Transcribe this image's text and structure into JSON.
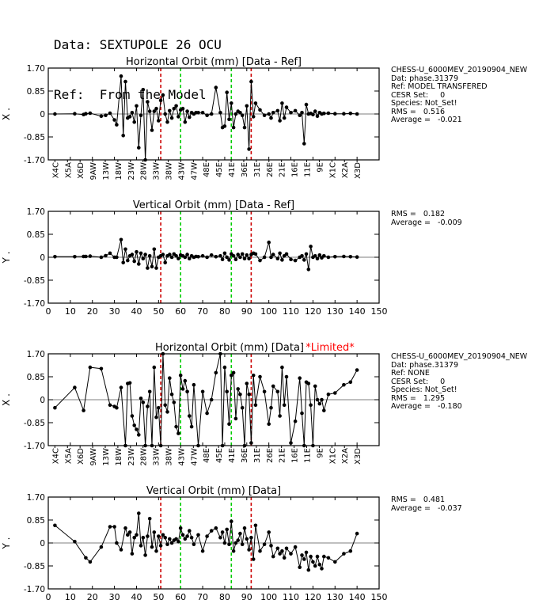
{
  "header": {
    "data_line": "Data: SEXTUPOLE 26 OCU",
    "ref_line": "Ref:  From the Model"
  },
  "colors": {
    "red_marker": "#cc0000",
    "green_marker": "#00cc00",
    "limited_text": "#ff0000"
  },
  "chart_data": [
    {
      "type": "line",
      "title": "Horizontal Orbit (mm) [Data - Ref]",
      "ylabel": "X",
      "ylim": [
        -1.7,
        1.7
      ],
      "xlim": [
        0,
        150
      ],
      "yticks": [
        "1.70",
        "0.85",
        "0",
        "-0.85",
        "-1.70"
      ],
      "marker_lines": {
        "red": [
          51,
          92
        ],
        "green": [
          60,
          83
        ]
      },
      "x_tick_labels": [
        "X4C",
        "X5A",
        "X6D",
        "9AW",
        "13W",
        "18W",
        "23W",
        "28W",
        "33W",
        "38W",
        "43W",
        "47W",
        "48E",
        "45E",
        "41E",
        "36E",
        "31E",
        "26E",
        "21E",
        "16E",
        "11E",
        "9E",
        "X1C",
        "X2A",
        "X3D"
      ],
      "info": [
        "CHESS-U_6000MEV_20190904_NEW",
        "Dat: phase.31379",
        "Ref: MODEL TRANSFERED",
        "CESR Set:     0",
        "Species: Not_Set!",
        "RMS =   0.516",
        "Average =   -0.021"
      ],
      "x": [
        3,
        12,
        16,
        17,
        19,
        24,
        26,
        28,
        30,
        31,
        33,
        34,
        35,
        36,
        37,
        38,
        39,
        40,
        41,
        42,
        43,
        44,
        45,
        46,
        47,
        48,
        49,
        50,
        51,
        52,
        53,
        54,
        55,
        56,
        57,
        58,
        59,
        60,
        61,
        62,
        63,
        64,
        65,
        66,
        67,
        68,
        70,
        72,
        74,
        76,
        78,
        79,
        80,
        81,
        82,
        83,
        84,
        85,
        86,
        87,
        88,
        89,
        90,
        91,
        92,
        93,
        94,
        96,
        98,
        100,
        101,
        102,
        104,
        105,
        106,
        107,
        108,
        110,
        112,
        114,
        115,
        116,
        117,
        118,
        119,
        120,
        121,
        122,
        123,
        124,
        125,
        127,
        130,
        134,
        137,
        140
      ],
      "y": [
        0.0,
        0.01,
        -0.02,
        0.01,
        0.03,
        -0.08,
        -0.05,
        0.03,
        -0.22,
        -0.4,
        1.4,
        -0.8,
        1.2,
        -0.15,
        -0.1,
        0.05,
        -0.3,
        0.3,
        -1.25,
        -0.05,
        0.9,
        -1.7,
        0.45,
        0.1,
        -0.6,
        0.1,
        0.2,
        -0.25,
        0.5,
        0.7,
        0.0,
        -0.3,
        0.12,
        -0.15,
        0.2,
        0.3,
        -0.1,
        0.15,
        0.2,
        -0.3,
        0.1,
        -0.12,
        0.05,
        0.0,
        0.05,
        0.05,
        0.05,
        -0.05,
        0.0,
        0.98,
        0.05,
        -0.5,
        -0.45,
        0.8,
        -0.2,
        0.4,
        -0.5,
        0.0,
        0.1,
        0.05,
        -0.05,
        -0.5,
        0.3,
        -1.3,
        1.2,
        -0.1,
        0.4,
        0.15,
        -0.05,
        0.0,
        -0.15,
        0.05,
        0.12,
        -0.25,
        0.4,
        -0.15,
        0.25,
        0.05,
        0.12,
        -0.05,
        0.05,
        -1.1,
        0.35,
        0.0,
        0.02,
        -0.02,
        0.1,
        -0.08,
        0.05,
        0.0,
        0.02,
        0.03,
        0.01,
        0.01,
        0.02,
        0.0
      ]
    },
    {
      "type": "line",
      "title": "Vertical Orbit (mm) [Data - Ref]",
      "ylabel": "Y",
      "ylim": [
        -1.7,
        1.7
      ],
      "xlim": [
        0,
        150
      ],
      "yticks": [
        "1.70",
        "0.85",
        "0",
        "-0.85",
        "-1.70"
      ],
      "xticks": [
        "0",
        "10",
        "20",
        "30",
        "40",
        "50",
        "60",
        "70",
        "80",
        "90",
        "100",
        "110",
        "120",
        "130",
        "140",
        "150"
      ],
      "marker_lines": {
        "red": [
          51,
          92
        ],
        "green": [
          60,
          83
        ]
      },
      "info": [
        "RMS =   0.182",
        "Average =   -0.009"
      ],
      "x": [
        3,
        12,
        16,
        17,
        19,
        24,
        26,
        28,
        30,
        31,
        33,
        34,
        35,
        36,
        37,
        38,
        39,
        40,
        41,
        42,
        43,
        44,
        45,
        46,
        47,
        48,
        49,
        50,
        51,
        52,
        53,
        54,
        55,
        56,
        57,
        58,
        59,
        60,
        61,
        62,
        63,
        64,
        65,
        66,
        67,
        68,
        70,
        72,
        74,
        76,
        78,
        79,
        80,
        81,
        82,
        83,
        84,
        85,
        86,
        87,
        88,
        89,
        90,
        91,
        92,
        93,
        94,
        96,
        98,
        100,
        101,
        102,
        104,
        105,
        106,
        107,
        108,
        110,
        112,
        114,
        115,
        116,
        117,
        118,
        119,
        120,
        121,
        122,
        123,
        124,
        125,
        127,
        130,
        134,
        137,
        140
      ],
      "y": [
        0.02,
        0.02,
        0.03,
        0.03,
        0.04,
        0.0,
        0.06,
        0.15,
        0.0,
        0.0,
        0.65,
        -0.2,
        0.3,
        -0.12,
        0.05,
        0.1,
        -0.15,
        0.2,
        -0.25,
        0.15,
        -0.05,
        0.1,
        -0.4,
        0.05,
        -0.35,
        0.3,
        -0.4,
        0.0,
        0.05,
        0.1,
        -0.2,
        0.05,
        0.1,
        0.0,
        0.12,
        0.05,
        -0.05,
        0.08,
        0.05,
        0.0,
        0.1,
        -0.05,
        0.05,
        0.0,
        0.03,
        0.02,
        0.05,
        0.0,
        0.08,
        0.02,
        0.05,
        -0.08,
        0.15,
        0.0,
        -0.1,
        0.12,
        0.05,
        -0.08,
        0.1,
        0.0,
        0.12,
        -0.05,
        0.08,
        -0.05,
        0.1,
        0.15,
        0.12,
        -0.12,
        0.0,
        0.55,
        0.0,
        0.1,
        -0.05,
        0.15,
        -0.1,
        0.05,
        0.12,
        -0.08,
        -0.12,
        0.0,
        0.05,
        -0.1,
        0.12,
        -0.45,
        0.4,
        0.0,
        0.05,
        -0.05,
        0.08,
        -0.02,
        0.05,
        0.0,
        0.02,
        0.03,
        0.02,
        0.01
      ]
    },
    {
      "type": "line",
      "title": "Horizontal Orbit (mm) [Data]",
      "limited_label": "*Limited*",
      "ylabel": "X",
      "ylim": [
        -1.7,
        1.7
      ],
      "xlim": [
        0,
        150
      ],
      "yticks": [
        "1.70",
        "0.85",
        "0",
        "-0.85",
        "-1.70"
      ],
      "marker_lines": {
        "red": [
          51,
          92
        ],
        "green": [
          60,
          83
        ]
      },
      "x_tick_labels": [
        "X4C",
        "X5A",
        "X6D",
        "9AW",
        "13W",
        "18W",
        "23W",
        "28W",
        "33W",
        "38W",
        "43W",
        "47W",
        "48E",
        "45E",
        "41E",
        "36E",
        "31E",
        "26E",
        "21E",
        "16E",
        "11E",
        "9E",
        "X1C",
        "X2A",
        "X3D"
      ],
      "info": [
        "CHESS-U_6000MEV_20190904_NEW",
        "Dat: phase.31379",
        "Ref: NONE",
        "CESR Set:     0",
        "Species: Not_Set!",
        "RMS =   1.295",
        "Average =   -0.180"
      ],
      "x": [
        3,
        12,
        16,
        19,
        24,
        28,
        30,
        31,
        33,
        35,
        36,
        37,
        38,
        39,
        40,
        41,
        42,
        43,
        44,
        45,
        46,
        47,
        48,
        49,
        50,
        51,
        52,
        53,
        54,
        55,
        56,
        57,
        58,
        59,
        60,
        61,
        62,
        63,
        64,
        65,
        66,
        68,
        70,
        72,
        74,
        76,
        78,
        79,
        80,
        81,
        82,
        83,
        84,
        85,
        86,
        87,
        88,
        89,
        90,
        91,
        92,
        93,
        94,
        96,
        98,
        100,
        101,
        102,
        104,
        105,
        106,
        107,
        108,
        110,
        112,
        114,
        115,
        116,
        117,
        118,
        119,
        120,
        121,
        122,
        123,
        124,
        125,
        127,
        130,
        134,
        137,
        140
      ],
      "y": [
        -0.3,
        0.45,
        -0.4,
        1.2,
        1.15,
        -0.2,
        -0.25,
        -0.3,
        0.45,
        -1.7,
        0.6,
        0.62,
        -0.6,
        -0.95,
        -1.1,
        -1.3,
        0.05,
        -0.1,
        -1.7,
        -0.25,
        0.3,
        -1.7,
        1.2,
        -0.65,
        -0.3,
        -1.7,
        1.7,
        -0.2,
        -0.45,
        0.8,
        0.2,
        -0.1,
        -1.0,
        -1.25,
        0.9,
        0.4,
        0.7,
        0.3,
        -0.6,
        -1.0,
        0.55,
        -1.7,
        0.3,
        -0.5,
        0.0,
        1.0,
        1.7,
        -1.7,
        1.2,
        0.3,
        -0.9,
        0.9,
        1.0,
        -0.7,
        0.4,
        0.2,
        -0.3,
        -1.7,
        0.6,
        0.2,
        -1.6,
        0.9,
        -0.2,
        0.85,
        0.3,
        -0.9,
        -0.3,
        0.5,
        0.3,
        -0.6,
        1.2,
        -0.2,
        0.85,
        -1.6,
        -0.8,
        0.8,
        -0.5,
        -1.7,
        0.65,
        0.6,
        -0.2,
        -1.7,
        0.5,
        0.0,
        -0.15,
        0.0,
        -0.4,
        0.2,
        0.25,
        0.55,
        0.65,
        1.1
      ]
    },
    {
      "type": "line",
      "title": "Vertical Orbit (mm) [Data]",
      "ylabel": "Y",
      "ylim": [
        -1.7,
        1.7
      ],
      "xlim": [
        0,
        150
      ],
      "yticks": [
        "1.70",
        "0.85",
        "0",
        "-0.85",
        "-1.70"
      ],
      "xticks": [
        "0",
        "10",
        "20",
        "30",
        "40",
        "50",
        "60",
        "70",
        "80",
        "90",
        "100",
        "110",
        "120",
        "130",
        "140",
        "150"
      ],
      "marker_lines": {
        "red": [
          51,
          92
        ],
        "green": [
          60,
          83
        ]
      },
      "info": [
        "RMS =   0.481",
        "Average =   -0.037"
      ],
      "x": [
        3,
        12,
        17,
        19,
        24,
        28,
        30,
        31,
        33,
        35,
        36,
        37,
        38,
        39,
        40,
        41,
        42,
        43,
        44,
        45,
        46,
        47,
        48,
        49,
        50,
        51,
        52,
        53,
        54,
        55,
        56,
        57,
        58,
        59,
        60,
        61,
        62,
        63,
        64,
        65,
        66,
        68,
        70,
        72,
        74,
        76,
        78,
        79,
        80,
        81,
        82,
        83,
        84,
        85,
        86,
        87,
        88,
        89,
        90,
        91,
        92,
        93,
        94,
        96,
        98,
        100,
        101,
        102,
        104,
        105,
        106,
        107,
        108,
        110,
        112,
        114,
        115,
        116,
        117,
        118,
        119,
        120,
        121,
        122,
        123,
        124,
        125,
        127,
        130,
        134,
        137,
        140
      ],
      "y": [
        0.65,
        0.05,
        -0.55,
        -0.7,
        -0.15,
        0.6,
        0.6,
        0.0,
        -0.25,
        0.55,
        0.3,
        0.4,
        -0.4,
        0.2,
        0.3,
        1.1,
        -0.1,
        0.2,
        -0.45,
        0.25,
        0.9,
        -0.15,
        0.4,
        -0.3,
        0.25,
        -0.1,
        0.3,
        0.2,
        -0.05,
        0.15,
        0.0,
        0.1,
        0.15,
        0.05,
        0.55,
        0.3,
        0.15,
        0.25,
        0.45,
        0.2,
        -0.05,
        0.3,
        -0.3,
        0.25,
        0.45,
        0.55,
        0.2,
        0.4,
        0.0,
        0.5,
        -0.05,
        0.8,
        -0.3,
        0.0,
        0.1,
        0.35,
        -0.05,
        0.55,
        0.15,
        -0.25,
        0.2,
        -0.6,
        0.65,
        -0.3,
        -0.05,
        0.4,
        -0.1,
        -0.5,
        -0.2,
        -0.4,
        -0.3,
        -0.55,
        -0.2,
        -0.4,
        -0.15,
        -0.9,
        -0.45,
        -0.6,
        -0.35,
        -1.0,
        -0.5,
        -0.7,
        -0.85,
        -0.5,
        -0.8,
        -0.95,
        -0.5,
        -0.55,
        -0.7,
        -0.4,
        -0.3,
        0.35
      ]
    }
  ]
}
